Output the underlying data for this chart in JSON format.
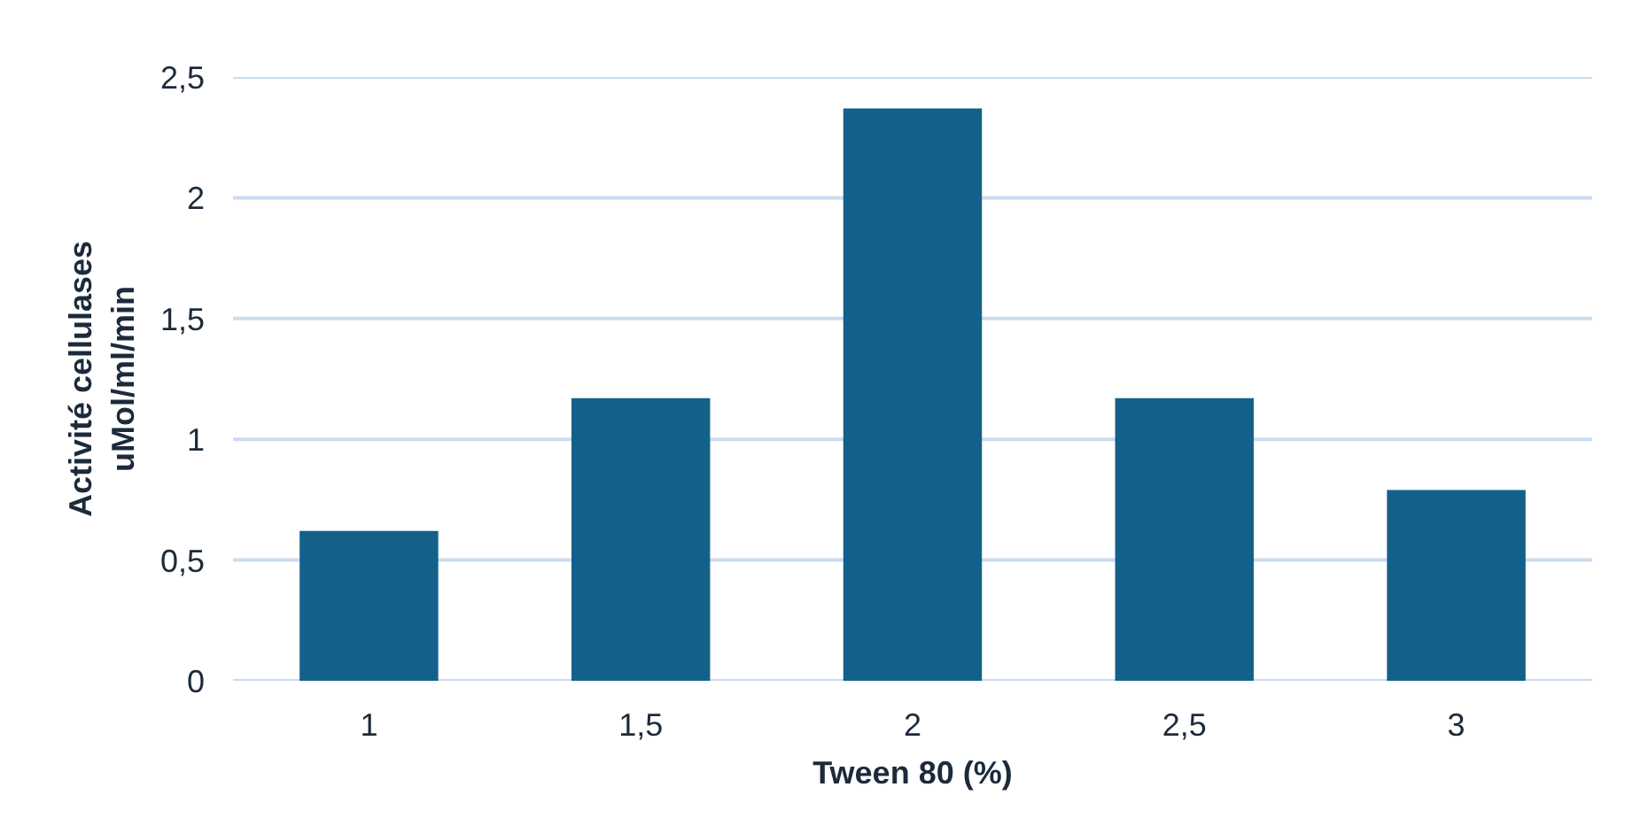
{
  "chart_data": {
    "type": "bar",
    "categories": [
      "1",
      "1,5",
      "2",
      "2,5",
      "3"
    ],
    "values": [
      0.62,
      1.17,
      2.37,
      1.17,
      0.79
    ],
    "color": "#13618a",
    "xlabel": "Tween 80 (%)",
    "ylabel": "Activité cellulases\nuMol/ml/min",
    "ylim": [
      0,
      2.5
    ],
    "yticks": [
      0,
      {
        "value": 0.5,
        "label": "0,5"
      },
      1,
      {
        "value": 1.5,
        "label": "1,5"
      },
      2,
      {
        "value": 2.5,
        "label": "2,5"
      }
    ],
    "grid": "y"
  }
}
